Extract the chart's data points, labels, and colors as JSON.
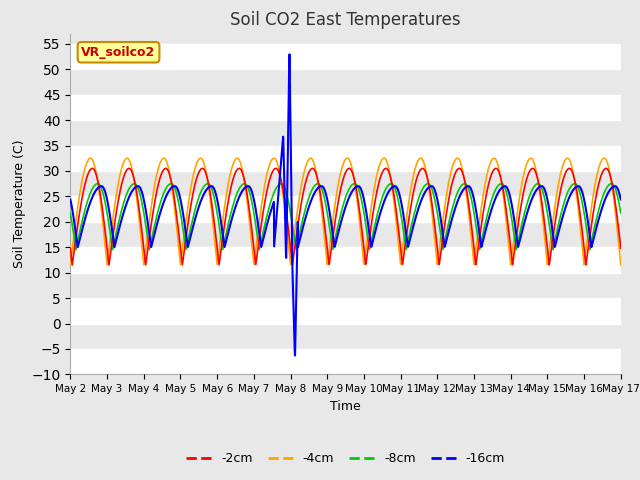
{
  "title": "Soil CO2 East Temperatures",
  "xlabel": "Time",
  "ylabel": "Soil Temperature (C)",
  "ylim": [
    -10,
    57
  ],
  "yticks": [
    -10,
    -5,
    0,
    5,
    10,
    15,
    20,
    25,
    30,
    35,
    40,
    45,
    50,
    55
  ],
  "x_tick_labels": [
    "May 2",
    "May 3",
    "May 4",
    "May 5",
    "May 6",
    "May 7",
    "May 8",
    "May 9",
    "May 10",
    "May 11",
    "May 12",
    "May 13",
    "May 14",
    "May 15",
    "May 16",
    "May 17"
  ],
  "colors": {
    "2cm": "#ff0000",
    "4cm": "#ffa500",
    "8cm": "#00cc00",
    "16cm": "#0000ff"
  },
  "bg_color": "#e8e8e8",
  "grid_color": "#ffffff",
  "legend_label": "VR_soilco2",
  "legend_text_color": "#cc0000",
  "legend_bg": "#ffff99",
  "legend_border": "#cc8800",
  "figsize": [
    6.4,
    4.8
  ],
  "dpi": 100
}
